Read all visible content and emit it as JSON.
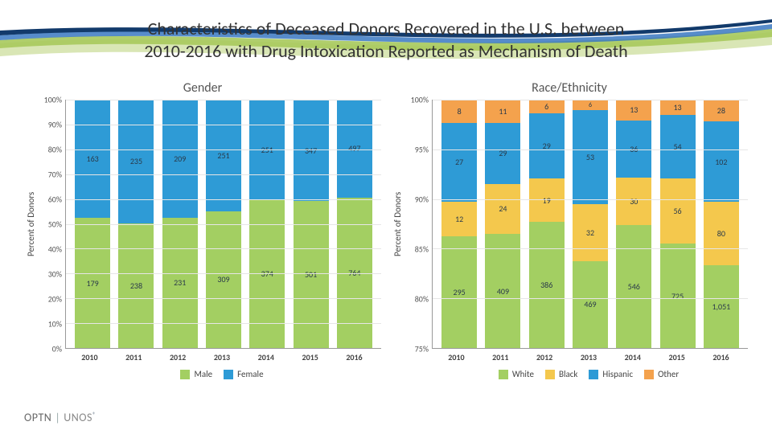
{
  "title_line1": "Characteristics of Deceased Donors Recovered in the U.S. between",
  "title_line2": "2010-2016 with Drug Intoxication Reported as Mechanism of Death",
  "colors": {
    "male": "#a3cf62",
    "female": "#2e9bd6",
    "white": "#a3cf62",
    "black": "#f4c84d",
    "hispanic": "#2e9bd6",
    "other": "#f4a24d",
    "grid": "#e6e6e6",
    "axis": "#999999",
    "text": "#444444"
  },
  "ylabel": "Percent of Donors",
  "gender": {
    "title": "Gender",
    "ymin": 0,
    "ymax": 100,
    "ystep": 10,
    "ysuffix": "%",
    "categories": [
      "2010",
      "2011",
      "2012",
      "2013",
      "2014",
      "2015",
      "2016"
    ],
    "series": [
      {
        "key": "male",
        "label": "Male",
        "colorKey": "male"
      },
      {
        "key": "female",
        "label": "Female",
        "colorKey": "female"
      }
    ],
    "data": {
      "male": [
        179,
        238,
        231,
        309,
        374,
        501,
        764
      ],
      "female": [
        163,
        235,
        209,
        251,
        251,
        347,
        497
      ]
    }
  },
  "race": {
    "title": "Race/Ethnicity",
    "ymin": 75,
    "ymax": 100,
    "ystep": 5,
    "ysuffix": "%",
    "categories": [
      "2010",
      "2011",
      "2012",
      "2013",
      "2014",
      "2015",
      "2016"
    ],
    "series": [
      {
        "key": "white",
        "label": "White",
        "colorKey": "white"
      },
      {
        "key": "black",
        "label": "Black",
        "colorKey": "black"
      },
      {
        "key": "hispanic",
        "label": "Hispanic",
        "colorKey": "hispanic"
      },
      {
        "key": "other",
        "label": "Other",
        "colorKey": "other"
      }
    ],
    "data": {
      "white": [
        295,
        409,
        386,
        469,
        546,
        725,
        1051
      ],
      "black": [
        12,
        24,
        19,
        32,
        30,
        56,
        80
      ],
      "hispanic": [
        27,
        29,
        29,
        53,
        36,
        54,
        102
      ],
      "other": [
        8,
        11,
        6,
        6,
        13,
        13,
        28
      ]
    },
    "labelFormat": {
      "1051": "1,051"
    }
  },
  "footer": {
    "optn": "OPTN",
    "unos": "UNOS"
  }
}
